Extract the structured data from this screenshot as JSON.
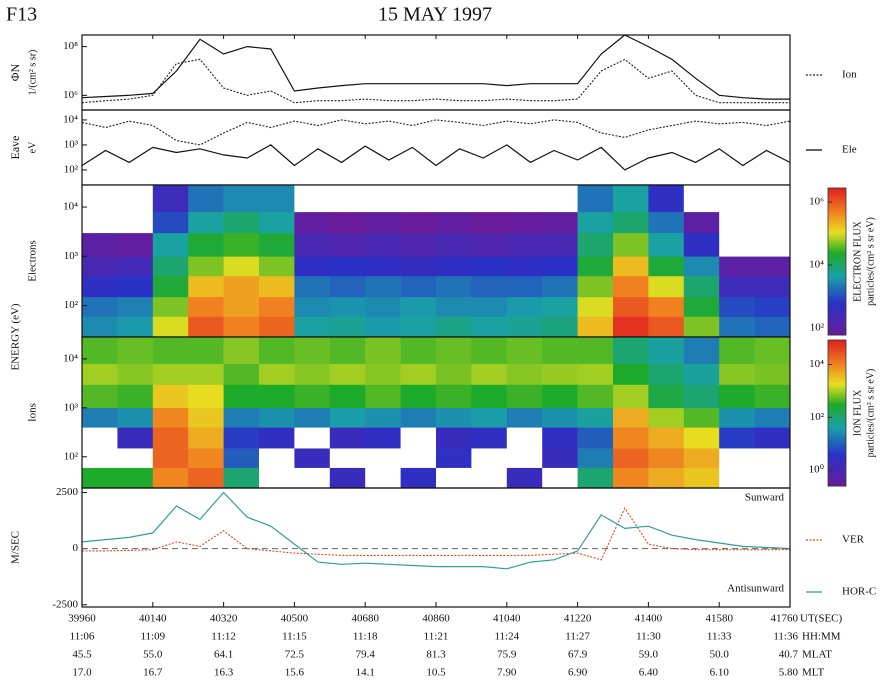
{
  "header": {
    "satellite": "F13",
    "title": "15 MAY 1997"
  },
  "chart_data": [
    {
      "type": "line",
      "log": true,
      "ylabel": "ΦN",
      "ylabel_unit": "1/(cm² s sr)",
      "ylim": [
        250000,
        300000000
      ],
      "yticks": [
        {
          "value": 1000000,
          "label": "10⁶"
        },
        {
          "value": 100000000,
          "label": "10⁸"
        }
      ],
      "x": [
        39960,
        40020,
        40080,
        40140,
        40200,
        40260,
        40320,
        40380,
        40440,
        40500,
        40560,
        40620,
        40680,
        40740,
        40800,
        40860,
        40920,
        40980,
        41040,
        41100,
        41160,
        41220,
        41280,
        41340,
        41400,
        41460,
        41520,
        41580,
        41640,
        41700,
        41760
      ],
      "series": [
        {
          "name": "Ion",
          "color": "#222222",
          "dash": "dotted",
          "values": [
            500000,
            600000,
            700000,
            1000000,
            20000000,
            30000000,
            2000000,
            1000000,
            1500000,
            500000,
            600000,
            600000,
            700000,
            600000,
            600000,
            700000,
            600000,
            600000,
            700000,
            600000,
            600000,
            700000,
            10000000,
            30000000,
            5000000,
            10000000,
            1000000,
            500000,
            500000,
            500000,
            500000
          ]
        },
        {
          "color": "#111111",
          "dash": "solid",
          "values": [
            800000,
            900000,
            1000000,
            1200000,
            10000000,
            200000000,
            50000000,
            100000000,
            80000000,
            1500000,
            2000000,
            2500000,
            3000000,
            3000000,
            3000000,
            3000000,
            3000000,
            3000000,
            2500000,
            3000000,
            3000000,
            3000000,
            50000000,
            300000000,
            100000000,
            30000000,
            5000000,
            1000000,
            800000,
            700000,
            700000
          ]
        }
      ]
    },
    {
      "type": "line",
      "log": true,
      "ylabel": "Eave",
      "ylabel_unit": "eV",
      "ylim": [
        25,
        25000
      ],
      "yticks": [
        {
          "value": 100,
          "label": "10²"
        },
        {
          "value": 1000,
          "label": "10³"
        },
        {
          "value": 10000,
          "label": "10⁴"
        }
      ],
      "x": [
        39960,
        40020,
        40080,
        40140,
        40200,
        40260,
        40320,
        40380,
        40440,
        40500,
        40560,
        40620,
        40680,
        40740,
        40800,
        40860,
        40920,
        40980,
        41040,
        41100,
        41160,
        41220,
        41280,
        41340,
        41400,
        41460,
        41520,
        41580,
        41640,
        41700,
        41760
      ],
      "series": [
        {
          "color": "#222222",
          "dash": "dotted",
          "values": [
            8000,
            5000,
            9000,
            6000,
            1500,
            1000,
            3000,
            8000,
            5000,
            9000,
            6000,
            10000,
            7000,
            9000,
            6000,
            10000,
            8000,
            6000,
            9000,
            7000,
            10000,
            8000,
            3000,
            2000,
            4000,
            6000,
            9000,
            7000,
            8000,
            6000,
            9000
          ]
        },
        {
          "name": "Ele",
          "color": "#111111",
          "dash": "solid",
          "values": [
            150,
            600,
            200,
            800,
            500,
            700,
            400,
            300,
            1000,
            150,
            700,
            200,
            900,
            250,
            800,
            150,
            700,
            300,
            1000,
            200,
            600,
            250,
            800,
            100,
            300,
            500,
            200,
            700,
            150,
            600,
            200
          ]
        }
      ]
    },
    {
      "type": "heatmap",
      "log": true,
      "ylabel": "Electrons",
      "ylabel_outer": "ENERGY (eV)",
      "ylim": [
        23,
        28000
      ],
      "yticks": [
        {
          "value": 100,
          "label": "10²"
        },
        {
          "value": 1000,
          "label": "10³"
        },
        {
          "value": 10000,
          "label": "10⁴"
        }
      ],
      "bins": [
        39960,
        40050,
        40140,
        40230,
        40320,
        40410,
        40500,
        40590,
        40680,
        40770,
        40860,
        40950,
        41040,
        41130,
        41220,
        41310,
        41400,
        41490,
        41580,
        41670,
        41760
      ],
      "energy_bins": [
        23,
        60,
        150,
        400,
        1000,
        3000,
        8000,
        28000
      ],
      "values": [
        [
          3000,
          4000,
          100000,
          1000000,
          500000,
          800000,
          5000,
          6000,
          4000,
          5000,
          7000,
          5000,
          6000,
          8000,
          200000,
          2000000,
          1000000,
          50000,
          2000,
          1500
        ],
        [
          2000,
          2500,
          50000,
          500000,
          300000,
          500000,
          3000,
          3500,
          3000,
          4000,
          3000,
          3000,
          4000,
          5000,
          100000,
          1000000,
          500000,
          20000,
          1000,
          800
        ],
        [
          500,
          600,
          20000,
          200000,
          300000,
          200000,
          2000,
          1500,
          2000,
          1500,
          2000,
          1500,
          1500,
          2000,
          50000,
          500000,
          100000,
          10000,
          300,
          300
        ],
        [
          200,
          250,
          10000,
          50000,
          100000,
          50000,
          500,
          600,
          500,
          400,
          500,
          600,
          500,
          600,
          20000,
          200000,
          20000,
          3000,
          100,
          100
        ],
        [
          100,
          80,
          5000,
          20000,
          30000,
          20000,
          200,
          150,
          200,
          150,
          200,
          150,
          200,
          200,
          10000,
          50000,
          5000,
          500,
          50,
          50
        ],
        [
          50,
          40,
          1000,
          5000,
          10000,
          5000,
          80,
          60,
          80,
          60,
          80,
          60,
          70,
          80,
          5000,
          10000,
          2000,
          100,
          10,
          10
        ],
        [
          10,
          10,
          300,
          2000,
          3000,
          3000,
          10,
          10,
          10,
          10,
          10,
          10,
          10,
          10,
          2000,
          5000,
          500,
          10,
          10,
          10
        ]
      ],
      "colorbar": {
        "label": "ELECTRON FLUX",
        "unit": "particles/(cm² s sr eV)",
        "lim": [
          60,
          2800000
        ],
        "ticks": [
          {
            "value": 100,
            "label": "10²"
          },
          {
            "value": 10000,
            "label": "10⁴"
          },
          {
            "value": 1000000,
            "label": "10⁶"
          }
        ]
      }
    },
    {
      "type": "heatmap",
      "log": true,
      "ylabel": "Ions",
      "ylim": [
        23,
        28000
      ],
      "yticks": [
        {
          "value": 100,
          "label": "10²"
        },
        {
          "value": 1000,
          "label": "10³"
        },
        {
          "value": 10000,
          "label": "10⁴"
        }
      ],
      "bins": [
        39960,
        40050,
        40140,
        40230,
        40320,
        40410,
        40500,
        40590,
        40680,
        40770,
        40860,
        40950,
        41040,
        41130,
        41220,
        41310,
        41400,
        41490,
        41580,
        41670,
        41760
      ],
      "energy_bins": [
        23,
        60,
        150,
        400,
        1000,
        3000,
        8000,
        28000
      ],
      "values": [
        [
          300,
          300,
          10000,
          20000,
          100,
          0.1,
          0.1,
          2,
          0.1,
          3,
          0.1,
          0.1,
          2,
          0.1,
          100,
          10000,
          5000,
          3000,
          0.1,
          0.1
        ],
        [
          0.1,
          0.1,
          20000,
          10000,
          10,
          0.1,
          2,
          0.1,
          0.1,
          0.1,
          3,
          0.1,
          0.1,
          2,
          20,
          20000,
          10000,
          5000,
          0.1,
          0.1
        ],
        [
          0.1,
          2,
          20000,
          5000,
          5,
          3,
          0.1,
          2,
          3,
          0.1,
          2,
          3,
          0.1,
          3,
          10,
          10000,
          5000,
          2000,
          5,
          3
        ],
        [
          20,
          30,
          10000,
          3000,
          20,
          30,
          20,
          40,
          30,
          20,
          30,
          40,
          20,
          30,
          50,
          5000,
          1000,
          500,
          30,
          20
        ],
        [
          500,
          400,
          3000,
          2000,
          300,
          300,
          400,
          300,
          500,
          300,
          400,
          300,
          400,
          300,
          500,
          1000,
          200,
          100,
          300,
          400
        ],
        [
          1000,
          800,
          1000,
          1000,
          500,
          1000,
          800,
          1000,
          800,
          1000,
          700,
          1000,
          800,
          900,
          1000,
          300,
          100,
          50,
          800,
          700
        ],
        [
          500,
          600,
          500,
          500,
          800,
          500,
          600,
          500,
          700,
          500,
          600,
          500,
          600,
          500,
          500,
          100,
          50,
          20,
          500,
          600
        ]
      ],
      "colorbar": {
        "label": "ION FLUX",
        "unit": "particles/(cm² s sr eV)",
        "lim": [
          0.25,
          85000
        ],
        "ticks": [
          {
            "value": 1,
            "label": "10⁰"
          },
          {
            "value": 100,
            "label": "10²"
          },
          {
            "value": 10000,
            "label": "10⁴"
          }
        ]
      }
    },
    {
      "type": "line",
      "log": false,
      "ylabel": "M/SEC",
      "ylim": [
        -2600,
        2700
      ],
      "yticks": [
        2500,
        0,
        -2500
      ],
      "zero_line": true,
      "annotations": [
        "Sunward",
        "Antisunward"
      ],
      "xlim": [
        39960,
        41760
      ],
      "xticks": [
        39960,
        40140,
        40320,
        40500,
        40680,
        40860,
        41040,
        41220,
        41400,
        41580,
        41760
      ],
      "xlabel": "UT(SEC)",
      "x_rows": [
        {
          "label": "HH:MM",
          "values": [
            "11:06",
            "11:09",
            "11:12",
            "11:15",
            "11:18",
            "11:21",
            "11:24",
            "11:27",
            "11:30",
            "11:33",
            "11:36"
          ]
        },
        {
          "label": "MLAT",
          "values": [
            "45.5",
            "55.0",
            "64.1",
            "72.5",
            "79.4",
            "81.3",
            "75.9",
            "67.9",
            "59.0",
            "50.0",
            "40.7"
          ]
        },
        {
          "label": "MLT",
          "values": [
            "17.0",
            "16.7",
            "16.3",
            "15.6",
            "14.1",
            "10.5",
            "7.90",
            "6.90",
            "6.40",
            "6.10",
            "5.80"
          ]
        }
      ],
      "x": [
        39960,
        40020,
        40080,
        40140,
        40200,
        40260,
        40320,
        40380,
        40440,
        40500,
        40560,
        40620,
        40680,
        40740,
        40800,
        40860,
        40920,
        40980,
        41040,
        41100,
        41160,
        41220,
        41280,
        41340,
        41400,
        41460,
        41520,
        41580,
        41640,
        41700,
        41760
      ],
      "series": [
        {
          "name": "VER",
          "color": "#e2491c",
          "dash": "dotted",
          "values": [
            -100,
            -100,
            -80,
            -50,
            300,
            100,
            800,
            0,
            -100,
            -200,
            -250,
            -300,
            -300,
            -300,
            -300,
            -300,
            -300,
            -300,
            -300,
            -300,
            -250,
            -200,
            -500,
            1800,
            200,
            0,
            -50,
            -50,
            -50,
            -50,
            -50
          ]
        },
        {
          "name": "HOR-C",
          "color": "#2f9e9e",
          "dash": "solid",
          "values": [
            300,
            400,
            500,
            700,
            1900,
            1300,
            2500,
            1400,
            1000,
            200,
            -600,
            -700,
            -650,
            -700,
            -750,
            -800,
            -800,
            -800,
            -900,
            -600,
            -500,
            -100,
            1500,
            900,
            1000,
            600,
            400,
            250,
            100,
            50,
            0
          ]
        }
      ]
    }
  ]
}
